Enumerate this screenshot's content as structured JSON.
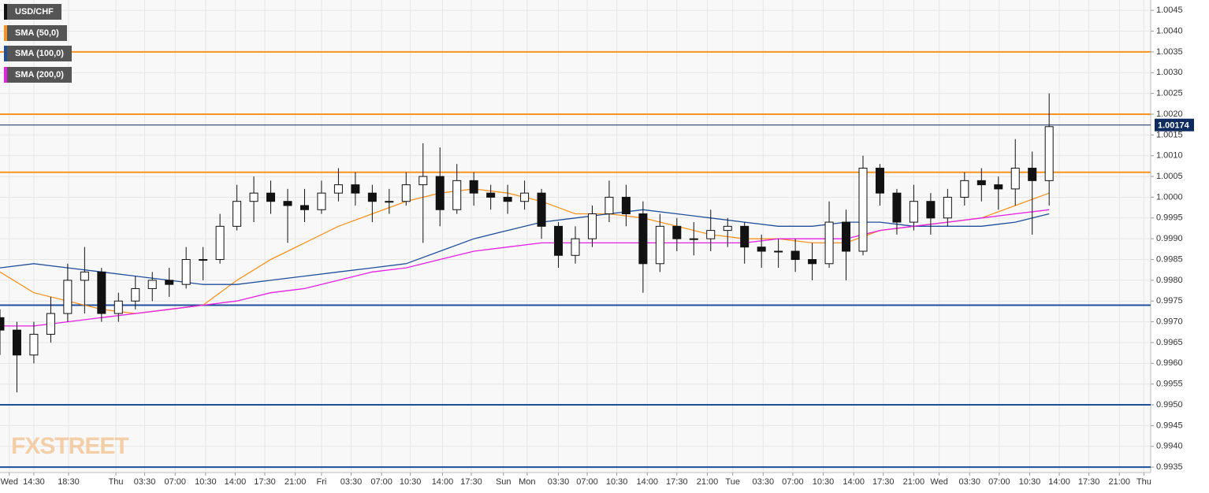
{
  "chart_data": {
    "type": "candlestick",
    "series": [
      {
        "name": "USD/CHF",
        "color": "#111111",
        "x": [
          0,
          2,
          4,
          6,
          8,
          10,
          12,
          14,
          16,
          18,
          20,
          22,
          24,
          26,
          28,
          30,
          32,
          34,
          36,
          38,
          40,
          42,
          44,
          46,
          48,
          50,
          52,
          54,
          56,
          58,
          60,
          62,
          64,
          66,
          68,
          70,
          72,
          74,
          76,
          78,
          80,
          82,
          84,
          86,
          88,
          90,
          92,
          94,
          96,
          98,
          100,
          102,
          104,
          106,
          108,
          110,
          112,
          114,
          116,
          118,
          120,
          122,
          124
        ],
        "open": [
          0.9971,
          0.9968,
          0.9962,
          0.9967,
          0.9972,
          0.998,
          0.9982,
          0.9972,
          0.9975,
          0.9978,
          0.998,
          0.9979,
          0.9985,
          0.9985,
          0.9993,
          0.9999,
          1.0001,
          0.9999,
          0.9998,
          0.9997,
          1.0001,
          1.0003,
          1.0001,
          0.9999,
          0.9999,
          1.0003,
          1.0005,
          0.9997,
          1.0004,
          1.0001,
          1.0,
          0.9999,
          1.0001,
          0.9993,
          0.9986,
          0.999,
          0.9996,
          1.0,
          0.9996,
          0.9984,
          0.9993,
          0.999,
          0.999,
          0.9992,
          0.9993,
          0.9988,
          0.9987,
          0.9987,
          0.9985,
          0.9984,
          0.9994,
          0.9987,
          1.0007,
          1.0001,
          0.9994,
          0.9999,
          0.9995,
          1.0,
          1.0004,
          1.0003,
          1.0002,
          1.0007,
          1.0004
        ],
        "high": [
          0.9973,
          0.997,
          0.997,
          0.9976,
          0.9984,
          0.9988,
          0.9983,
          0.9977,
          0.9981,
          0.9982,
          0.9983,
          0.9988,
          0.9988,
          0.9996,
          1.0003,
          1.0005,
          1.0004,
          1.0002,
          1.0002,
          1.0004,
          1.0007,
          1.0006,
          1.0003,
          1.0002,
          1.0006,
          1.0013,
          1.0012,
          1.0008,
          1.0006,
          1.0003,
          1.0003,
          1.0004,
          1.0002,
          0.9994,
          0.9993,
          0.9998,
          1.0004,
          1.0003,
          0.9999,
          0.9996,
          0.9995,
          0.9994,
          0.9997,
          0.9995,
          0.9994,
          0.9991,
          0.999,
          0.999,
          0.9989,
          0.9999,
          0.9997,
          1.001,
          1.0008,
          1.0002,
          1.0003,
          1.0001,
          1.0002,
          1.0006,
          1.0007,
          1.0005,
          1.0014,
          1.0011,
          1.0025
        ],
        "low": [
          0.9962,
          0.9953,
          0.996,
          0.9965,
          0.997,
          0.9972,
          0.997,
          0.997,
          0.9973,
          0.9975,
          0.9976,
          0.9978,
          0.998,
          0.9984,
          0.9992,
          0.9994,
          0.9996,
          0.9989,
          0.9994,
          0.9996,
          0.9999,
          0.9998,
          0.9994,
          0.9996,
          0.9998,
          0.9989,
          0.9993,
          0.9996,
          0.9998,
          0.9997,
          0.9996,
          0.9997,
          0.999,
          0.9983,
          0.9984,
          0.9988,
          0.9994,
          0.9993,
          0.9977,
          0.9982,
          0.9987,
          0.9986,
          0.9987,
          0.9988,
          0.9984,
          0.9983,
          0.9983,
          0.9982,
          0.998,
          0.9983,
          0.998,
          0.9986,
          0.9998,
          0.9991,
          0.9992,
          0.9991,
          0.9993,
          0.9998,
          0.9999,
          0.9997,
          0.9998,
          0.9991,
          0.9998
        ],
        "close": [
          0.9968,
          0.9962,
          0.9967,
          0.9972,
          0.998,
          0.9982,
          0.9972,
          0.9975,
          0.9978,
          0.998,
          0.9979,
          0.9985,
          0.9985,
          0.9993,
          0.9999,
          1.0001,
          0.9999,
          0.9998,
          0.9997,
          1.0001,
          1.0003,
          1.0001,
          0.9999,
          0.9999,
          1.0003,
          1.0005,
          0.9997,
          1.0004,
          1.0001,
          1.0,
          0.9999,
          1.0001,
          0.9993,
          0.9986,
          0.999,
          0.9996,
          1.0,
          0.9996,
          0.9984,
          0.9993,
          0.999,
          0.999,
          0.9992,
          0.9993,
          0.9988,
          0.9987,
          0.9987,
          0.9985,
          0.9984,
          0.9994,
          0.9987,
          1.0007,
          1.0001,
          0.9994,
          0.9999,
          0.9995,
          1.0,
          1.0004,
          1.0003,
          1.0002,
          1.0007,
          1.0004,
          1.0017
        ]
      }
    ],
    "sma": {
      "x": [
        0,
        4,
        8,
        12,
        16,
        20,
        24,
        28,
        32,
        36,
        40,
        44,
        48,
        52,
        56,
        60,
        64,
        68,
        72,
        76,
        80,
        84,
        88,
        92,
        96,
        100,
        104,
        108,
        112,
        116,
        120,
        124
      ],
      "series": [
        {
          "name": "SMA (50,0)",
          "color": "#f7931e",
          "values": [
            0.9982,
            0.9977,
            0.9975,
            0.9973,
            0.9972,
            0.9973,
            0.9974,
            0.998,
            0.9985,
            0.9989,
            0.9993,
            0.9996,
            0.9999,
            1.0001,
            1.0002,
            1.0001,
            0.9999,
            0.9996,
            0.9996,
            0.9995,
            0.9993,
            0.9991,
            0.999,
            0.999,
            0.9989,
            0.9989,
            0.9992,
            0.9993,
            0.9994,
            0.9995,
            0.9998,
            1.0001
          ]
        },
        {
          "name": "SMA (100,0)",
          "color": "#1f4e9c",
          "values": [
            0.9983,
            0.9984,
            0.9983,
            0.9982,
            0.9981,
            0.998,
            0.9979,
            0.9979,
            0.998,
            0.9981,
            0.9982,
            0.9983,
            0.9984,
            0.9987,
            0.999,
            0.9992,
            0.9994,
            0.9995,
            0.9996,
            0.9997,
            0.9996,
            0.9995,
            0.9994,
            0.9993,
            0.9993,
            0.9994,
            0.9994,
            0.9993,
            0.9993,
            0.9993,
            0.9994,
            0.9996
          ]
        },
        {
          "name": "SMA (200,0)",
          "color": "#e61ee6",
          "values": [
            0.9969,
            0.9969,
            0.997,
            0.9971,
            0.9972,
            0.9973,
            0.9974,
            0.9975,
            0.9977,
            0.9978,
            0.998,
            0.9982,
            0.9983,
            0.9985,
            0.9987,
            0.9988,
            0.9989,
            0.9989,
            0.9989,
            0.9989,
            0.9989,
            0.9989,
            0.9989,
            0.999,
            0.999,
            0.999,
            0.9992,
            0.9993,
            0.9994,
            0.9995,
            0.9996,
            0.9997
          ]
        }
      ]
    },
    "levels": [
      {
        "value": 1.0035,
        "color": "#f7931e"
      },
      {
        "value": 1.002,
        "color": "#f7931e"
      },
      {
        "value": 1.0006,
        "color": "#f7931e"
      },
      {
        "value": 0.9974,
        "color": "#1f4e9c"
      },
      {
        "value": 0.995,
        "color": "#1f4e9c"
      },
      {
        "value": 0.9935,
        "color": "#1f4e9c"
      }
    ],
    "last_price": 1.00174,
    "last_price_color": "#0d2b5e",
    "watermark": "FXSTREET",
    "grid": true,
    "xlim": [
      0,
      136
    ],
    "xticks": [
      {
        "value": 1.1,
        "label": "Wed"
      },
      {
        "value": 4.0,
        "label": "14:30"
      },
      {
        "value": 8.1,
        "label": "18:30"
      },
      {
        "value": 13.7,
        "label": "Thu"
      },
      {
        "value": 17.1,
        "label": "03:30"
      },
      {
        "value": 20.7,
        "label": "07:00"
      },
      {
        "value": 24.3,
        "label": "10:30"
      },
      {
        "value": 27.8,
        "label": "14:00"
      },
      {
        "value": 31.3,
        "label": "17:30"
      },
      {
        "value": 34.9,
        "label": "21:00"
      },
      {
        "value": 38.0,
        "label": "Fri"
      },
      {
        "value": 41.5,
        "label": "03:30"
      },
      {
        "value": 45.1,
        "label": "07:00"
      },
      {
        "value": 48.5,
        "label": "10:30"
      },
      {
        "value": 52.3,
        "label": "14:00"
      },
      {
        "value": 55.7,
        "label": "17:30"
      },
      {
        "value": 59.5,
        "label": "Sun"
      },
      {
        "value": 62.3,
        "label": "Mon"
      },
      {
        "value": 66.0,
        "label": "03:30"
      },
      {
        "value": 69.4,
        "label": "07:00"
      },
      {
        "value": 72.9,
        "label": "10:30"
      },
      {
        "value": 76.5,
        "label": "14:00"
      },
      {
        "value": 80.0,
        "label": "17:30"
      },
      {
        "value": 83.6,
        "label": "21:00"
      },
      {
        "value": 86.6,
        "label": "Tue"
      },
      {
        "value": 90.2,
        "label": "03:30"
      },
      {
        "value": 93.7,
        "label": "07:00"
      },
      {
        "value": 97.3,
        "label": "10:30"
      },
      {
        "value": 100.9,
        "label": "14:00"
      },
      {
        "value": 104.4,
        "label": "17:30"
      },
      {
        "value": 108.0,
        "label": "21:00"
      },
      {
        "value": 111.0,
        "label": "Wed"
      },
      {
        "value": 114.6,
        "label": "03:30"
      },
      {
        "value": 118.1,
        "label": "07:00"
      },
      {
        "value": 121.7,
        "label": "10:30"
      },
      {
        "value": 125.2,
        "label": "14:00"
      },
      {
        "value": 128.7,
        "label": "17:30"
      },
      {
        "value": 132.3,
        "label": "21:00"
      },
      {
        "value": 135.2,
        "label": "Thu"
      }
    ],
    "ylim": [
      0.99337,
      1.00475
    ],
    "yticks": [
      {
        "value": 1.0045,
        "label": "1.0045"
      },
      {
        "value": 1.004,
        "label": "1.0040"
      },
      {
        "value": 1.0035,
        "label": "1.0035"
      },
      {
        "value": 1.003,
        "label": "1.0030"
      },
      {
        "value": 1.0025,
        "label": "1.0025"
      },
      {
        "value": 1.002,
        "label": "1.0020"
      },
      {
        "value": 1.0015,
        "label": "1.0015"
      },
      {
        "value": 1.001,
        "label": "1.0010"
      },
      {
        "value": 1.0005,
        "label": "1.0005"
      },
      {
        "value": 1,
        "label": "1.0000"
      },
      {
        "value": 0.9995,
        "label": "0.9995"
      },
      {
        "value": 0.999,
        "label": "0.9990"
      },
      {
        "value": 0.9985,
        "label": "0.9985"
      },
      {
        "value": 0.998,
        "label": "0.9980"
      },
      {
        "value": 0.9975,
        "label": "0.9975"
      },
      {
        "value": 0.997,
        "label": "0.9970"
      },
      {
        "value": 0.9965,
        "label": "0.9965"
      },
      {
        "value": 0.996,
        "label": "0.9960"
      },
      {
        "value": 0.9955,
        "label": "0.9955"
      },
      {
        "value": 0.995,
        "label": "0.9950"
      },
      {
        "value": 0.9945,
        "label": "0.9945"
      },
      {
        "value": 0.994,
        "label": "0.9940"
      },
      {
        "value": 0.9935,
        "label": "0.9935"
      }
    ]
  }
}
